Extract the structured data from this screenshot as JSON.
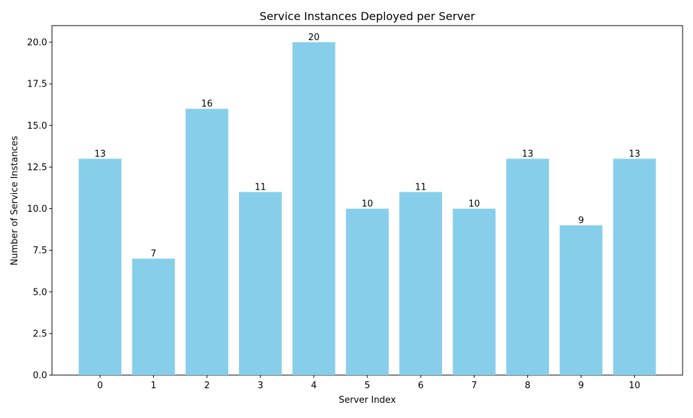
{
  "chart_data": {
    "type": "bar",
    "title": "Service Instances Deployed per Server",
    "xlabel": "Server Index",
    "ylabel": "Number of Service Instances",
    "categories": [
      "0",
      "1",
      "2",
      "3",
      "4",
      "5",
      "6",
      "7",
      "8",
      "9",
      "10"
    ],
    "values": [
      13,
      7,
      16,
      11,
      20,
      10,
      11,
      10,
      13,
      9,
      13
    ],
    "ylim": [
      0,
      21
    ],
    "yticks": [
      0.0,
      2.5,
      5.0,
      7.5,
      10.0,
      12.5,
      15.0,
      17.5,
      20.0
    ],
    "ytick_labels": [
      "0.0",
      "2.5",
      "5.0",
      "7.5",
      "10.0",
      "12.5",
      "15.0",
      "17.5",
      "20.0"
    ],
    "bar_color": "#87ceeb",
    "grid": false,
    "legend": "none",
    "data_labels": true
  }
}
